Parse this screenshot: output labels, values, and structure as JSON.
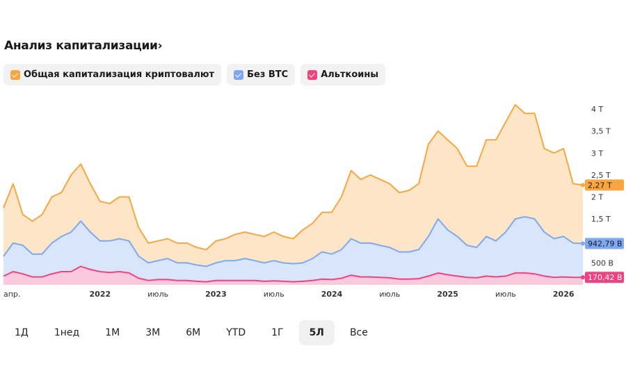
{
  "header": {
    "title": "Анализ капитализации",
    "chevron": "›"
  },
  "legend": [
    {
      "label": "Общая капитализация криптовалют",
      "color": "#f9a640",
      "checked": true
    },
    {
      "label": "Без BTC",
      "color": "#7ea8f2",
      "checked": true
    },
    {
      "label": "Альткоины",
      "color": "#f0427f",
      "checked": true
    }
  ],
  "ranges": {
    "items": [
      "1Д",
      "1нед",
      "1М",
      "3М",
      "6М",
      "YTD",
      "1Г",
      "5Л",
      "Все"
    ],
    "active": "5Л"
  },
  "chart_data": {
    "type": "area",
    "title": "Анализ капитализации",
    "unit": "trillion USD",
    "x_start": "2021-03",
    "x_step": "1 month",
    "ylim": [
      0,
      4.2
    ],
    "y_ticks": [
      {
        "v": 0.5,
        "label": "500 B"
      },
      {
        "v": 1.5,
        "label": "1,5 T"
      },
      {
        "v": 2,
        "label": "2 T"
      },
      {
        "v": 2.5,
        "label": "2,5 T"
      },
      {
        "v": 3,
        "label": "3 T"
      },
      {
        "v": 3.5,
        "label": "3,5 T"
      },
      {
        "v": 4,
        "label": "4 T"
      }
    ],
    "x_ticks": [
      {
        "i": 1,
        "label": "апр.",
        "year": false
      },
      {
        "i": 10,
        "label": "2022",
        "year": true
      },
      {
        "i": 16,
        "label": "июль",
        "year": false
      },
      {
        "i": 22,
        "label": "2023",
        "year": true
      },
      {
        "i": 28,
        "label": "июль",
        "year": false
      },
      {
        "i": 34,
        "label": "2024",
        "year": true
      },
      {
        "i": 40,
        "label": "июль",
        "year": false
      },
      {
        "i": 46,
        "label": "2025",
        "year": true
      },
      {
        "i": 52,
        "label": "июль",
        "year": false
      },
      {
        "i": 58,
        "label": "2026",
        "year": true
      }
    ],
    "series": [
      {
        "name": "Общая капитализация криптовалют",
        "color": "#f9a640",
        "fill": "#fde5c8",
        "last_label": "2,27 T",
        "values": [
          1.75,
          2.3,
          1.6,
          1.45,
          1.6,
          2.0,
          2.1,
          2.5,
          2.75,
          2.3,
          1.9,
          1.85,
          2.0,
          2.0,
          1.3,
          0.95,
          1.0,
          1.05,
          0.95,
          0.95,
          0.85,
          0.8,
          1.0,
          1.05,
          1.15,
          1.2,
          1.15,
          1.1,
          1.2,
          1.1,
          1.05,
          1.25,
          1.4,
          1.65,
          1.65,
          2.0,
          2.6,
          2.4,
          2.5,
          2.4,
          2.3,
          2.1,
          2.15,
          2.3,
          3.2,
          3.5,
          3.3,
          3.1,
          2.7,
          2.7,
          3.3,
          3.3,
          3.7,
          4.1,
          3.9,
          3.9,
          3.1,
          3.0,
          3.1,
          2.3,
          2.27
        ]
      },
      {
        "name": "Без BTC",
        "color": "#7ea8f2",
        "fill": "#d8e5fb",
        "last_label": "942,79 B",
        "values": [
          0.65,
          0.95,
          0.9,
          0.7,
          0.7,
          0.95,
          1.1,
          1.2,
          1.45,
          1.2,
          1.0,
          1.0,
          1.05,
          1.0,
          0.65,
          0.5,
          0.55,
          0.6,
          0.5,
          0.5,
          0.45,
          0.42,
          0.5,
          0.55,
          0.55,
          0.6,
          0.55,
          0.5,
          0.55,
          0.5,
          0.48,
          0.5,
          0.6,
          0.75,
          0.7,
          0.8,
          1.05,
          0.95,
          0.95,
          0.9,
          0.85,
          0.75,
          0.75,
          0.8,
          1.1,
          1.5,
          1.25,
          1.1,
          0.9,
          0.85,
          1.1,
          1.0,
          1.2,
          1.5,
          1.55,
          1.5,
          1.2,
          1.05,
          1.1,
          0.95,
          0.94
        ]
      },
      {
        "name": "Альткоины",
        "color": "#f0427f",
        "fill": "#fbc9dc",
        "last_label": "170,42 B",
        "values": [
          0.2,
          0.3,
          0.25,
          0.18,
          0.18,
          0.25,
          0.3,
          0.3,
          0.42,
          0.35,
          0.3,
          0.28,
          0.3,
          0.27,
          0.15,
          0.1,
          0.12,
          0.12,
          0.1,
          0.1,
          0.08,
          0.07,
          0.1,
          0.1,
          0.1,
          0.1,
          0.1,
          0.08,
          0.09,
          0.08,
          0.07,
          0.08,
          0.1,
          0.13,
          0.12,
          0.15,
          0.22,
          0.18,
          0.18,
          0.17,
          0.16,
          0.13,
          0.13,
          0.14,
          0.2,
          0.27,
          0.23,
          0.2,
          0.17,
          0.16,
          0.2,
          0.18,
          0.2,
          0.27,
          0.27,
          0.25,
          0.2,
          0.17,
          0.18,
          0.17,
          0.17
        ]
      }
    ]
  }
}
